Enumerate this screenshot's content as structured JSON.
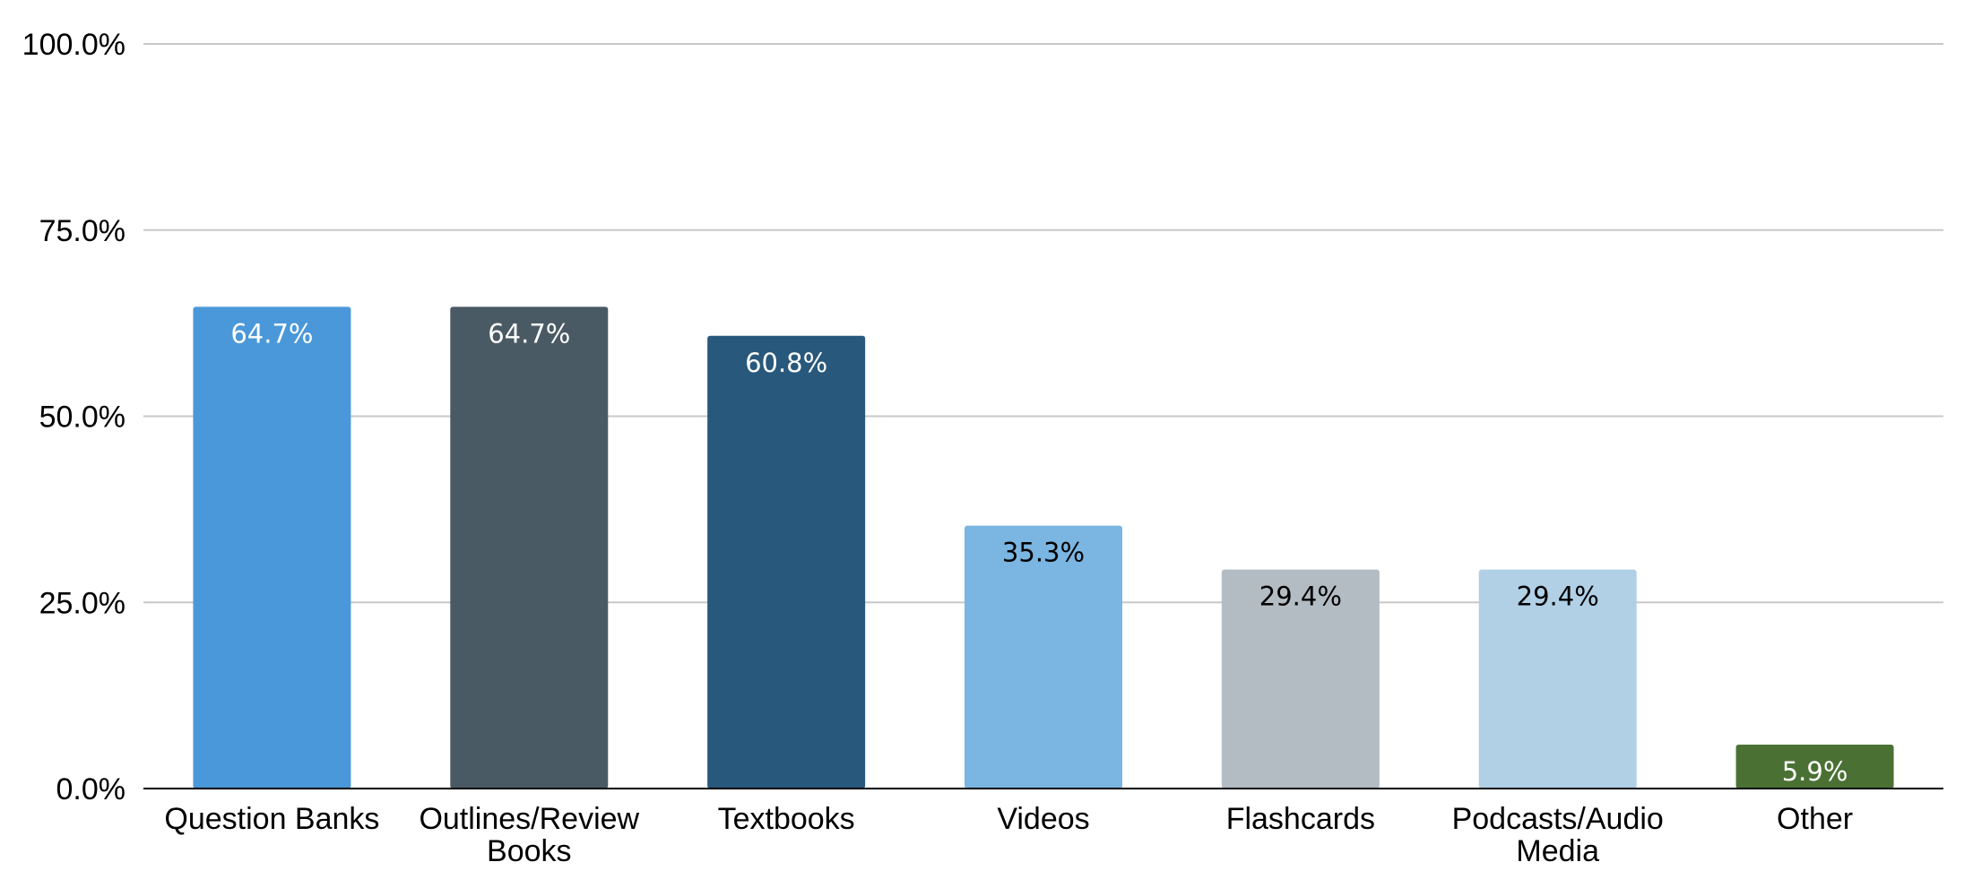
{
  "chart_data": {
    "type": "bar",
    "categories": [
      [
        "Question Banks"
      ],
      [
        "Outlines/Review",
        "Books"
      ],
      [
        "Textbooks"
      ],
      [
        "Videos"
      ],
      [
        "Flashcards"
      ],
      [
        "Podcasts/Audio",
        "Media"
      ],
      [
        "Other"
      ]
    ],
    "values": [
      64.7,
      64.7,
      60.8,
      35.3,
      29.4,
      29.4,
      5.9
    ],
    "data_labels": [
      "64.7%",
      "64.7%",
      "60.8%",
      "35.3%",
      "29.4%",
      "29.4%",
      "5.9%"
    ],
    "bar_colors": [
      "#4a98d9",
      "#4a5a64",
      "#28587c",
      "#7bb5e1",
      "#b4bcc3",
      "#b1d0e6",
      "#4a7133"
    ],
    "label_colors": [
      "#ffffff",
      "#ffffff",
      "#ffffff",
      "#000000",
      "#000000",
      "#000000",
      "#ffffff"
    ],
    "title": "",
    "xlabel": "",
    "ylabel": "",
    "ylim": [
      0,
      100
    ],
    "yticks": [
      0,
      25,
      50,
      75,
      100
    ],
    "ytick_labels": [
      "0.0%",
      "25.0%",
      "50.0%",
      "75.0%",
      "100.0%"
    ],
    "grid": true,
    "legend": "none"
  }
}
